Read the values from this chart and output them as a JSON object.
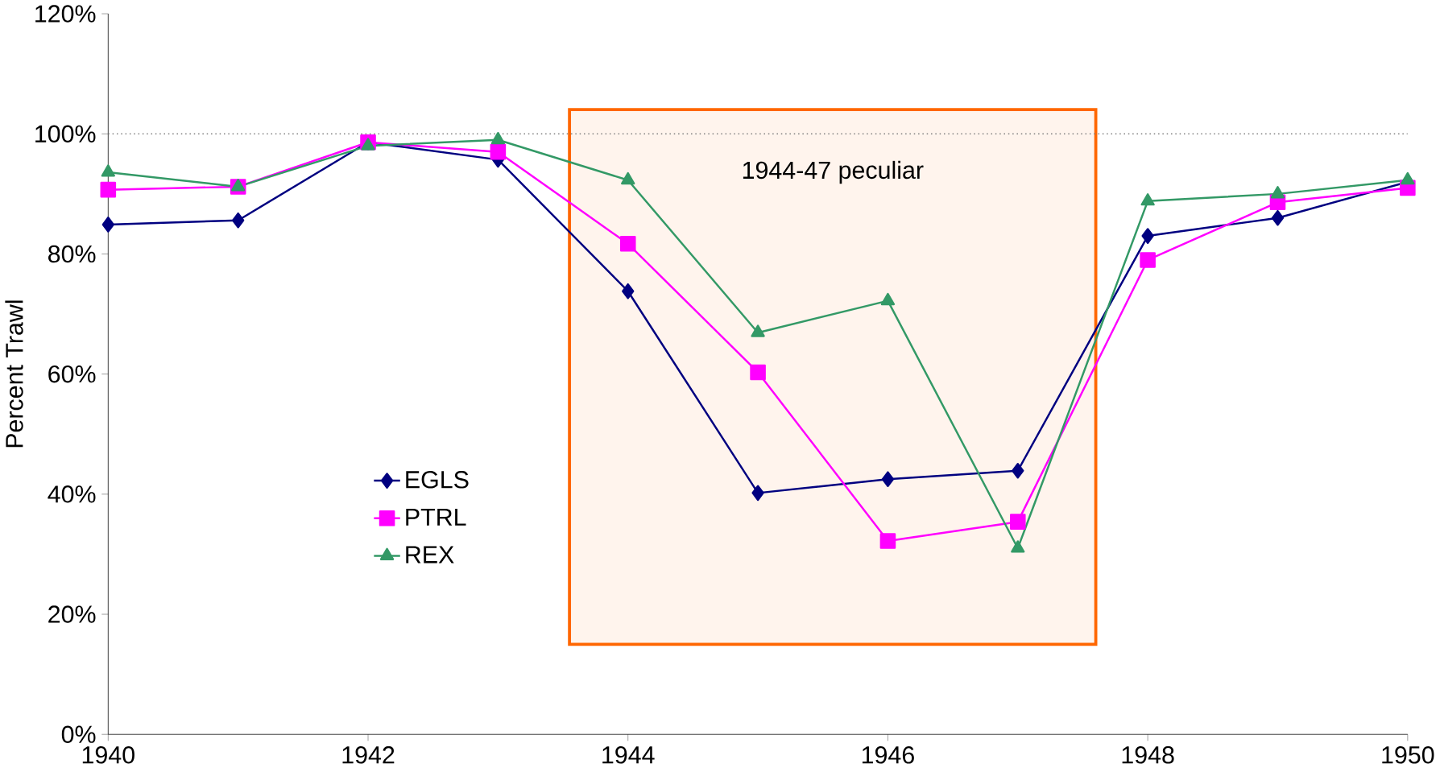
{
  "chart_data": {
    "type": "line",
    "ylabel": "Percent Trawl",
    "x": [
      1940,
      1941,
      1942,
      1943,
      1944,
      1945,
      1946,
      1947,
      1948,
      1949,
      1950
    ],
    "series": [
      {
        "name": "EGLS",
        "color": "#000080",
        "marker": "diamond",
        "values": [
          84.9,
          85.6,
          98.6,
          95.7,
          73.8,
          40.2,
          42.5,
          43.9,
          83,
          86,
          92
        ]
      },
      {
        "name": "PTRL",
        "color": "#ff00ff",
        "marker": "square",
        "values": [
          90.7,
          91.2,
          98.6,
          97,
          81.7,
          60.3,
          32.2,
          35.4,
          79,
          88.6,
          91
        ]
      },
      {
        "name": "REX",
        "color": "#339966",
        "marker": "triangle",
        "values": [
          93.6,
          91.2,
          98,
          99,
          92.3,
          66.9,
          72.2,
          31,
          88.8,
          90,
          92.3
        ]
      }
    ],
    "xlim": [
      1940,
      1950
    ],
    "xticks": [
      1940,
      1942,
      1944,
      1946,
      1948,
      1950
    ],
    "ylim": [
      0,
      120
    ],
    "yticks": [
      {
        "value": 0,
        "label": "0%"
      },
      {
        "value": 20,
        "label": "20%"
      },
      {
        "value": 40,
        "label": "40%"
      },
      {
        "value": 60,
        "label": "60%"
      },
      {
        "value": 80,
        "label": "80%"
      },
      {
        "value": 100,
        "label": "100%"
      },
      {
        "value": 120,
        "label": "120%"
      }
    ],
    "ref_lines": [
      {
        "axis": "y",
        "value": 100,
        "color": "#808080",
        "line_style": "dotted"
      }
    ],
    "bands": [
      {
        "axis": "x",
        "from": 1943.55,
        "to": 1947.6,
        "label": "1944-47 peculiar",
        "color": "#ff6600"
      }
    ],
    "legend": "left",
    "grid": false
  }
}
